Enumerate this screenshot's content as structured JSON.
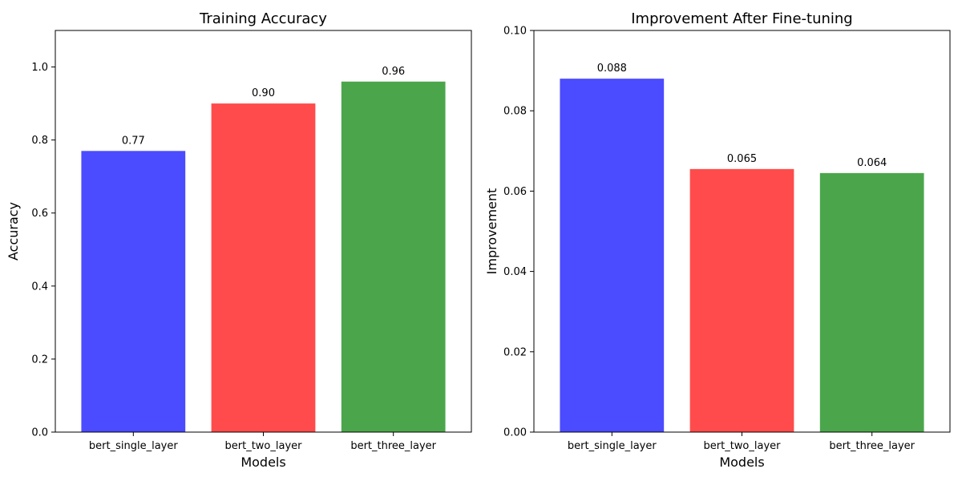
{
  "chart_data": [
    {
      "type": "bar",
      "title": "Training Accuracy",
      "xlabel": "Models",
      "ylabel": "Accuracy",
      "categories": [
        "bert_single_layer",
        "bert_two_layer",
        "bert_three_layer"
      ],
      "values": [
        0.77,
        0.9,
        0.96
      ],
      "value_labels": [
        "0.77",
        "0.90",
        "0.96"
      ],
      "colors": [
        "#4b4bff",
        "#ff4b4b",
        "#4ba64b"
      ],
      "ylim": [
        0,
        1.1
      ],
      "yticks": [
        0.0,
        0.2,
        0.4,
        0.6,
        0.8,
        1.0
      ],
      "ytick_labels": [
        "0.0",
        "0.2",
        "0.4",
        "0.6",
        "0.8",
        "1.0"
      ],
      "grid": false
    },
    {
      "type": "bar",
      "title": "Improvement After Fine-tuning",
      "xlabel": "Models",
      "ylabel": "Improvement",
      "categories": [
        "bert_single_layer",
        "bert_two_layer",
        "bert_three_layer"
      ],
      "values": [
        0.088,
        0.0655,
        0.0645
      ],
      "value_labels": [
        "0.088",
        "0.065",
        "0.064"
      ],
      "colors": [
        "#4b4bff",
        "#ff4b4b",
        "#4ba64b"
      ],
      "ylim": [
        0,
        0.1
      ],
      "yticks": [
        0.0,
        0.02,
        0.04,
        0.06,
        0.08,
        0.1
      ],
      "ytick_labels": [
        "0.00",
        "0.02",
        "0.04",
        "0.06",
        "0.08",
        "0.10"
      ],
      "grid": false
    }
  ]
}
